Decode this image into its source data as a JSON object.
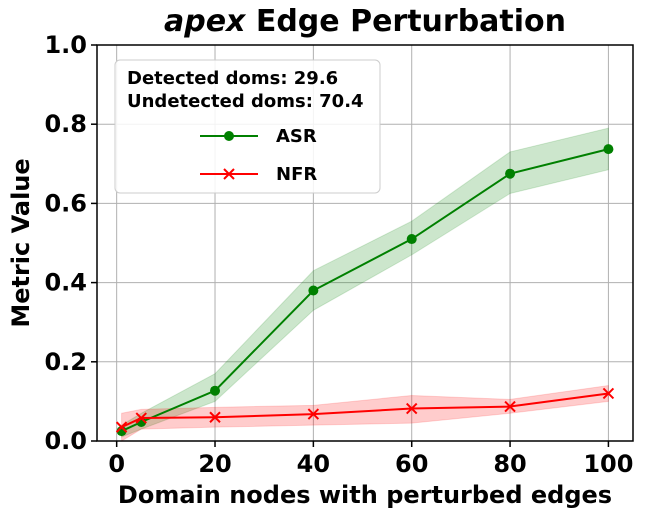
{
  "chart_data": {
    "type": "line",
    "title_emphasis": "apex",
    "title": "Edge Perturbation",
    "xlabel": "Domain nodes with perturbed edges",
    "ylabel": "Metric Value",
    "annotations": [
      "Detected doms: 29.6",
      "Undetected doms: 70.4"
    ],
    "x": [
      1,
      5,
      20,
      40,
      60,
      80,
      100
    ],
    "series": [
      {
        "name": "ASR",
        "color": "#008000",
        "marker": "circle",
        "values": [
          0.025,
          0.048,
          0.127,
          0.38,
          0.51,
          0.675,
          0.737
        ],
        "lower": [
          0.01,
          0.03,
          0.1,
          0.33,
          0.47,
          0.625,
          0.685
        ],
        "upper": [
          0.04,
          0.07,
          0.17,
          0.43,
          0.555,
          0.73,
          0.79
        ]
      },
      {
        "name": "NFR",
        "color": "#ff0000",
        "marker": "x",
        "values": [
          0.035,
          0.058,
          0.06,
          0.068,
          0.082,
          0.087,
          0.12
        ],
        "lower": [
          0.0,
          0.03,
          0.035,
          0.04,
          0.045,
          0.07,
          0.1
        ],
        "upper": [
          0.07,
          0.08,
          0.085,
          0.09,
          0.115,
          0.105,
          0.14
        ]
      }
    ],
    "xlim": [
      -4,
      105
    ],
    "ylim": [
      0,
      1
    ],
    "xticks": [
      0,
      20,
      40,
      60,
      80,
      100
    ],
    "yticks": [
      {
        "value": 0,
        "label": "0.0"
      },
      {
        "value": 0.2,
        "label": "0.2"
      },
      {
        "value": 0.4,
        "label": "0.4"
      },
      {
        "value": 0.6,
        "label": "0.6"
      },
      {
        "value": 0.8,
        "label": "0.8"
      },
      {
        "value": 1,
        "label": "1.0"
      }
    ],
    "grid": true,
    "legend": "upper left"
  }
}
